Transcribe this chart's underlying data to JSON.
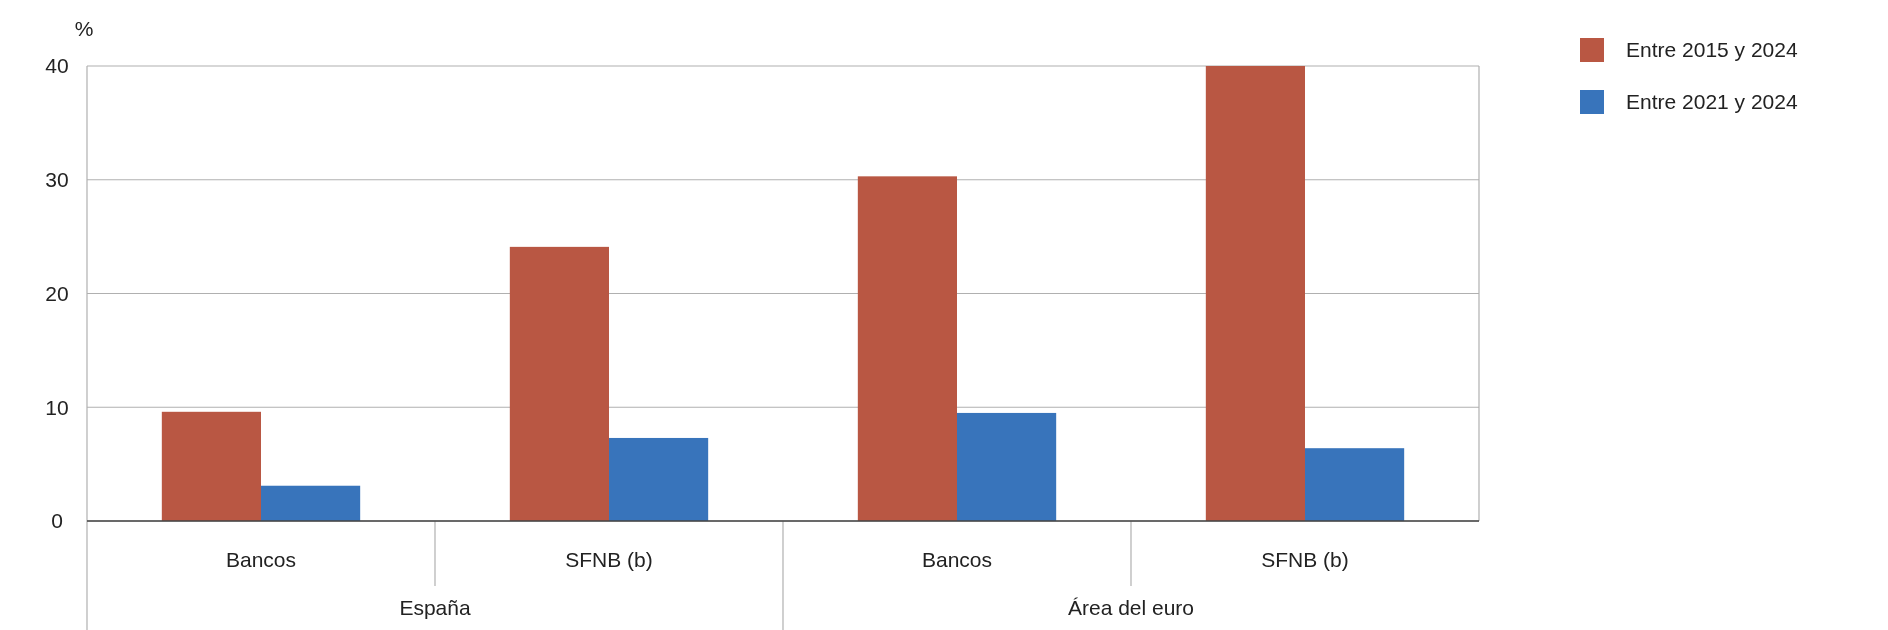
{
  "chart_data": {
    "type": "bar",
    "ylabel": "%",
    "categories": [
      "Bancos",
      "SFNB (b)",
      "Bancos",
      "SFNB (b)"
    ],
    "series": [
      {
        "name": "Entre 2015 y 2024",
        "color": "#b95743",
        "values": [
          9.6,
          24.1,
          30.3,
          40
        ]
      },
      {
        "name": "Entre 2021 y 2024",
        "color": "#3874bb",
        "values": [
          3.1,
          7.3,
          9.5,
          6.4
        ]
      }
    ],
    "ylim": [
      0,
      40
    ],
    "yticks": [
      0,
      10,
      20,
      30,
      40
    ],
    "grid": "y",
    "legend": "right",
    "annotations": [
      "España",
      "Área del euro"
    ]
  }
}
